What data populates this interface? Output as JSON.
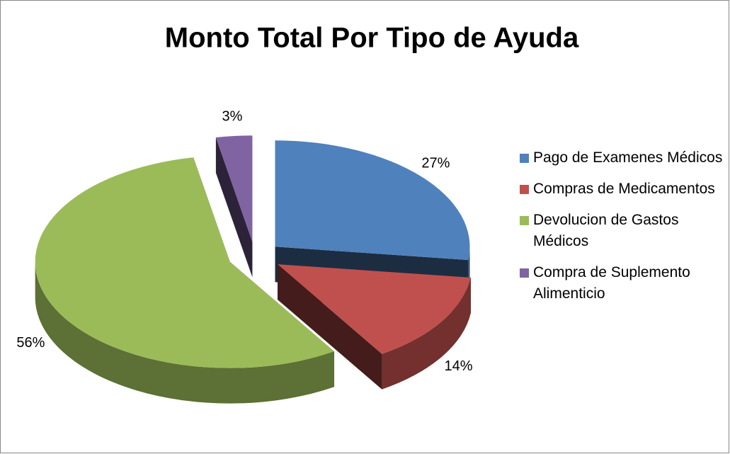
{
  "chart_data": {
    "type": "pie",
    "title": "Monto Total Por Tipo de Ayuda",
    "categories": [
      "Pago de Examenes Médicos",
      "Compras de Medicamentos",
      "Devolucion de Gastos Médicos",
      "Compra de Suplemento Alimenticio"
    ],
    "values": [
      27,
      14,
      56,
      3
    ],
    "value_labels": [
      "27%",
      "14%",
      "56%",
      "3%"
    ],
    "colors": [
      "#4f81bd",
      "#c0504d",
      "#9bbb59",
      "#8064a2"
    ],
    "legend": "right"
  }
}
